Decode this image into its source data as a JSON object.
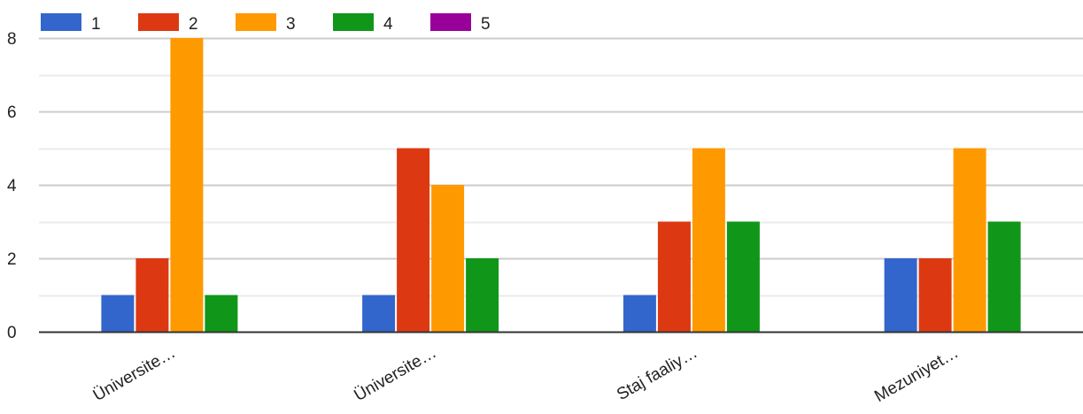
{
  "chart_data": {
    "type": "bar",
    "categories": [
      "Üniversite…",
      "Üniversite…",
      "Staj faaliy…",
      "Mezuniyet…"
    ],
    "series": [
      {
        "name": "1",
        "color": "#3366cc",
        "values": [
          1,
          1,
          1,
          2
        ]
      },
      {
        "name": "2",
        "color": "#dc3912",
        "values": [
          2,
          5,
          3,
          2
        ]
      },
      {
        "name": "3",
        "color": "#ff9900",
        "values": [
          8,
          4,
          5,
          5
        ]
      },
      {
        "name": "4",
        "color": "#109618",
        "values": [
          1,
          2,
          3,
          3
        ]
      },
      {
        "name": "5",
        "color": "#990099",
        "values": [
          0,
          0,
          0,
          0
        ]
      }
    ],
    "ylim": [
      0,
      8
    ],
    "yticks": [
      0,
      2,
      4,
      6,
      8
    ],
    "minor_gridlines": true,
    "legend_position": "top-left"
  }
}
